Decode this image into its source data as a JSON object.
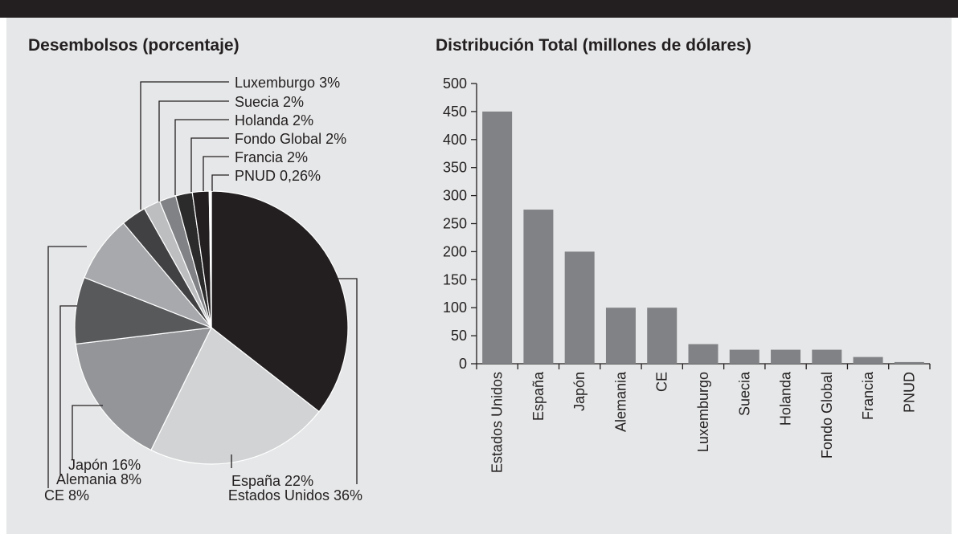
{
  "chart_data": [
    {
      "type": "pie",
      "title": "Desembolsos (porcentaje)",
      "slices": [
        {
          "label": "Estados Unidos 36%",
          "name": "Estados Unidos",
          "value": 36,
          "color": "#231f20"
        },
        {
          "label": "España 22%",
          "name": "España",
          "value": 22,
          "color": "#d1d3d4"
        },
        {
          "label": "Japón 16%",
          "name": "Japón",
          "value": 16,
          "color": "#939598"
        },
        {
          "label": "Alemania 8%",
          "name": "Alemania",
          "value": 8,
          "color": "#58595b"
        },
        {
          "label": "CE 8%",
          "name": "CE",
          "value": 8,
          "color": "#a7a9ac"
        },
        {
          "label": "Luxemburgo 3%",
          "name": "Luxemburgo",
          "value": 3,
          "color": "#414042"
        },
        {
          "label": "Suecia 2%",
          "name": "Suecia",
          "value": 2,
          "color": "#bcbec0"
        },
        {
          "label": "Holanda 2%",
          "name": "Holanda",
          "value": 2,
          "color": "#808285"
        },
        {
          "label": "Fondo Global 2%",
          "name": "Fondo Global",
          "value": 2,
          "color": "#2b2b2b"
        },
        {
          "label": "Francia 2%",
          "name": "Francia",
          "value": 2,
          "color": "#231f20"
        },
        {
          "label": "PNUD 0,26%",
          "name": "PNUD",
          "value": 0.26,
          "color": "#ffffff"
        }
      ]
    },
    {
      "type": "bar",
      "title": "Distribución Total (millones de dólares)",
      "categories": [
        "Estados Unidos",
        "España",
        "Japón",
        "Alemania",
        "CE",
        "Luxemburgo",
        "Suecia",
        "Holanda",
        "Fondo Global",
        "Francia",
        "PNUD"
      ],
      "values": [
        450,
        275,
        200,
        100,
        100,
        35,
        25,
        25,
        25,
        12,
        3
      ],
      "ylim": [
        0,
        500
      ],
      "yticks": [
        "0",
        "50",
        "100",
        "150",
        "200",
        "250",
        "300",
        "350",
        "400",
        "450",
        "500"
      ],
      "bar_color": "#808285",
      "grid": false
    }
  ]
}
